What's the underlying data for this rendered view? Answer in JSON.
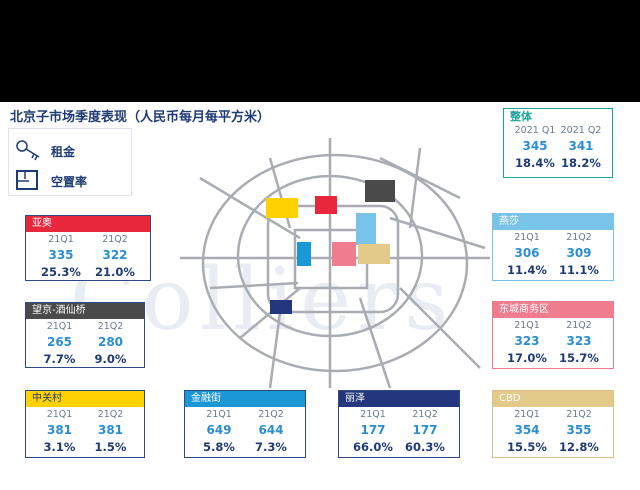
{
  "title": "北京子市场季度表现（人民币每月每平方米）",
  "legend": {
    "rent_label": "租金",
    "vacancy_label": "空置率"
  },
  "watermark": "Colliers",
  "overall": {
    "title": "整体",
    "q1": "2021 Q1",
    "q2": "2021 Q2",
    "rent_q1": "345",
    "rent_q2": "341",
    "vac_q1": "18.4%",
    "vac_q2": "18.2%",
    "color": "#1aa39a"
  },
  "markets": [
    {
      "key": "yaao",
      "name": "亚奥",
      "color": "#e8273d",
      "q1": "21Q1",
      "q2": "21Q2",
      "rent_q1": "335",
      "rent_q2": "322",
      "vac_q1": "25.3%",
      "vac_q2": "21.0%"
    },
    {
      "key": "wangjing",
      "name": "望京-酒仙桥",
      "color": "#4a4a4a",
      "q1": "21Q1",
      "q2": "21Q2",
      "rent_q1": "265",
      "rent_q2": "280",
      "vac_q1": "7.7%",
      "vac_q2": "9.0%"
    },
    {
      "key": "zhongguancun",
      "name": "中关村",
      "color": "#ffd200",
      "q1": "21Q1",
      "q2": "21Q2",
      "rent_q1": "381",
      "rent_q2": "381",
      "vac_q1": "3.1%",
      "vac_q2": "1.5%"
    },
    {
      "key": "jinrongjie",
      "name": "金融街",
      "color": "#1a97d5",
      "q1": "21Q1",
      "q2": "21Q2",
      "rent_q1": "649",
      "rent_q2": "644",
      "vac_q1": "5.8%",
      "vac_q2": "7.3%"
    },
    {
      "key": "lize",
      "name": "丽泽",
      "color": "#24367e",
      "q1": "21Q1",
      "q2": "21Q2",
      "rent_q1": "177",
      "rent_q2": "177",
      "vac_q1": "66.0%",
      "vac_q2": "60.3%"
    },
    {
      "key": "cbd",
      "name": "CBD",
      "color": "#e3c98a",
      "q1": "21Q1",
      "q2": "21Q2",
      "rent_q1": "354",
      "rent_q2": "355",
      "vac_q1": "15.5%",
      "vac_q2": "12.8%"
    },
    {
      "key": "yansha",
      "name": "燕莎",
      "color": "#78c3ea",
      "q1": "21Q1",
      "q2": "21Q2",
      "rent_q1": "306",
      "rent_q2": "309",
      "vac_q1": "11.4%",
      "vac_q2": "11.1%"
    },
    {
      "key": "dongcheng",
      "name": "东城商务区",
      "color": "#ef7d8f",
      "q1": "21Q1",
      "q2": "21Q2",
      "rent_q1": "323",
      "rent_q2": "323",
      "vac_q1": "17.0%",
      "vac_q2": "15.7%"
    }
  ]
}
